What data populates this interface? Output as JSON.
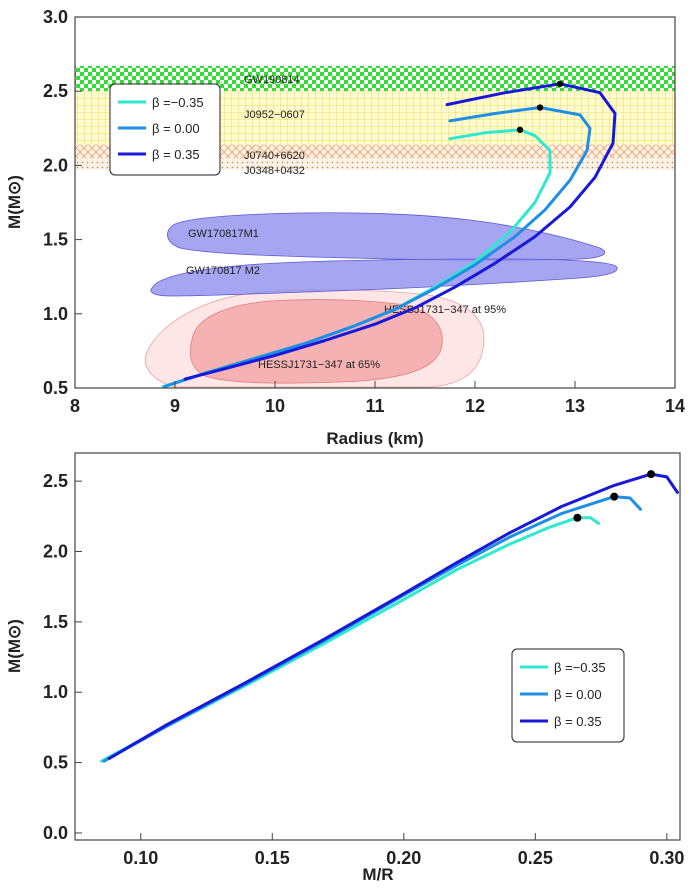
{
  "chart_data": [
    {
      "type": "line",
      "xlabel": "Radius (km)",
      "ylabel": "M(M⊙)",
      "xlim": [
        8,
        14
      ],
      "ylim": [
        0.5,
        3.0
      ],
      "xticks": [
        "8",
        "9",
        "10",
        "11",
        "12",
        "13",
        "14"
      ],
      "yticks": [
        "0.5",
        "1.0",
        "1.5",
        "2.0",
        "2.5",
        "3.0"
      ],
      "legend": [
        "β =−0.35",
        "β = 0.00",
        "β = 0.35"
      ],
      "legend_position": "top-left",
      "series": [
        {
          "name": "β =−0.35",
          "color": "#2ee8cf",
          "points": [
            [
              8.88,
              0.51
            ],
            [
              9.3,
              0.6
            ],
            [
              9.8,
              0.7
            ],
            [
              10.3,
              0.8
            ],
            [
              10.8,
              0.92
            ],
            [
              11.2,
              1.03
            ],
            [
              11.6,
              1.18
            ],
            [
              12.0,
              1.35
            ],
            [
              12.35,
              1.55
            ],
            [
              12.6,
              1.75
            ],
            [
              12.75,
              1.95
            ],
            [
              12.75,
              2.1
            ],
            [
              12.6,
              2.2
            ],
            [
              12.45,
              2.24
            ],
            [
              12.1,
              2.22
            ],
            [
              11.75,
              2.18
            ]
          ],
          "max_mass_point": [
            12.45,
            2.24
          ]
        },
        {
          "name": "β = 0.00",
          "color": "#1e8ee6",
          "points": [
            [
              8.9,
              0.51
            ],
            [
              9.3,
              0.6
            ],
            [
              9.8,
              0.7
            ],
            [
              10.3,
              0.8
            ],
            [
              10.8,
              0.92
            ],
            [
              11.2,
              1.03
            ],
            [
              11.6,
              1.17
            ],
            [
              12.0,
              1.33
            ],
            [
              12.4,
              1.52
            ],
            [
              12.7,
              1.7
            ],
            [
              12.95,
              1.9
            ],
            [
              13.12,
              2.1
            ],
            [
              13.15,
              2.25
            ],
            [
              13.05,
              2.34
            ],
            [
              12.65,
              2.39
            ],
            [
              12.2,
              2.35
            ],
            [
              11.75,
              2.3
            ]
          ],
          "max_mass_point": [
            12.65,
            2.39
          ]
        },
        {
          "name": "β = 0.35",
          "color": "#1818d8",
          "points": [
            [
              9.1,
              0.56
            ],
            [
              9.5,
              0.63
            ],
            [
              10.0,
              0.72
            ],
            [
              10.5,
              0.82
            ],
            [
              11.0,
              0.93
            ],
            [
              11.4,
              1.04
            ],
            [
              11.8,
              1.18
            ],
            [
              12.2,
              1.34
            ],
            [
              12.6,
              1.52
            ],
            [
              12.95,
              1.72
            ],
            [
              13.2,
              1.92
            ],
            [
              13.38,
              2.15
            ],
            [
              13.4,
              2.35
            ],
            [
              13.25,
              2.49
            ],
            [
              12.85,
              2.55
            ],
            [
              12.3,
              2.49
            ],
            [
              11.72,
              2.41
            ]
          ],
          "max_mass_point": [
            12.85,
            2.55
          ]
        }
      ],
      "bands": [
        {
          "label": "GW190814",
          "range": [
            2.5,
            2.67
          ],
          "color": "#33dd33",
          "pattern": "checker"
        },
        {
          "label": "J0952−0607",
          "range": [
            2.14,
            2.5
          ],
          "color": "#f2e62a",
          "pattern": "grid"
        },
        {
          "label": "J0740+6620",
          "range": [
            2.0,
            2.14
          ],
          "color": "#ff9933",
          "pattern": "hatch"
        },
        {
          "label": "J0348+0432",
          "range": [
            1.97,
            2.05
          ],
          "color": "#cc9966",
          "pattern": "dots"
        }
      ],
      "regions": [
        {
          "label": "GW170817M1",
          "color": "#8f8fee"
        },
        {
          "label": "GW170817 M2",
          "color": "#8f8fee"
        },
        {
          "label": "HESSJ1731−347 at 95%",
          "color": "#ffdada"
        },
        {
          "label": "HESSJ1731−347 at 65%",
          "color": "#f5a8a8"
        }
      ]
    },
    {
      "type": "line",
      "xlabel": "M/R",
      "ylabel": "M(M⊙)",
      "xlim": [
        0.075,
        0.305
      ],
      "ylim": [
        -0.05,
        2.7
      ],
      "xticks": [
        "0.10",
        "0.15",
        "0.20",
        "0.25",
        "0.30"
      ],
      "yticks": [
        "0.0",
        "0.5",
        "1.0",
        "1.5",
        "2.0",
        "2.5"
      ],
      "legend": [
        "β =−0.35",
        "β = 0.00",
        "β = 0.35"
      ],
      "legend_position": "bottom-right",
      "series": [
        {
          "name": "β =−0.35",
          "color": "#2ee8cf",
          "points": [
            [
              0.085,
              0.51
            ],
            [
              0.11,
              0.76
            ],
            [
              0.14,
              1.05
            ],
            [
              0.17,
              1.35
            ],
            [
              0.2,
              1.66
            ],
            [
              0.22,
              1.87
            ],
            [
              0.24,
              2.05
            ],
            [
              0.255,
              2.17
            ],
            [
              0.266,
              2.24
            ],
            [
              0.271,
              2.24
            ],
            [
              0.274,
              2.2
            ]
          ],
          "max_mass_point": [
            0.266,
            2.24
          ]
        },
        {
          "name": "β = 0.00",
          "color": "#1e8ee6",
          "points": [
            [
              0.086,
              0.51
            ],
            [
              0.11,
              0.76
            ],
            [
              0.14,
              1.06
            ],
            [
              0.17,
              1.37
            ],
            [
              0.2,
              1.69
            ],
            [
              0.22,
              1.9
            ],
            [
              0.24,
              2.1
            ],
            [
              0.26,
              2.27
            ],
            [
              0.28,
              2.39
            ],
            [
              0.286,
              2.38
            ],
            [
              0.29,
              2.3
            ]
          ],
          "max_mass_point": [
            0.28,
            2.39
          ]
        },
        {
          "name": "β = 0.35",
          "color": "#1818d8",
          "points": [
            [
              0.088,
              0.53
            ],
            [
              0.11,
              0.77
            ],
            [
              0.14,
              1.07
            ],
            [
              0.17,
              1.38
            ],
            [
              0.2,
              1.7
            ],
            [
              0.22,
              1.92
            ],
            [
              0.24,
              2.13
            ],
            [
              0.26,
              2.32
            ],
            [
              0.28,
              2.47
            ],
            [
              0.294,
              2.55
            ],
            [
              0.3,
              2.53
            ],
            [
              0.304,
              2.42
            ]
          ],
          "max_mass_point": [
            0.294,
            2.55
          ]
        }
      ]
    }
  ]
}
